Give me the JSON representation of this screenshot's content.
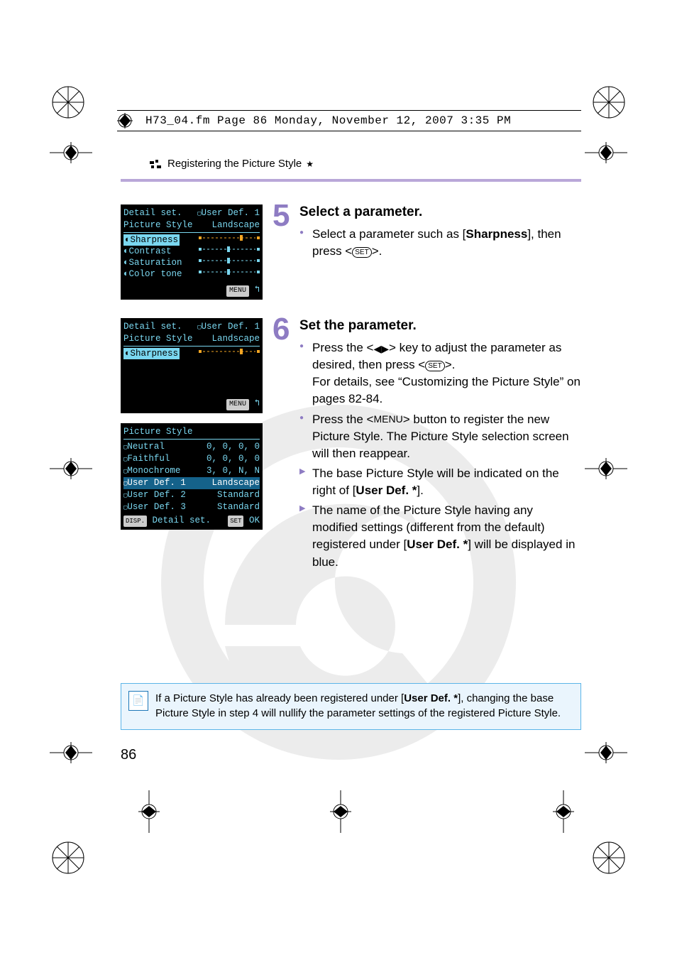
{
  "header_line": "H73_04.fm  Page 86  Monday, November 12, 2007  3:35 PM",
  "section_title": "Registering the Picture Style",
  "section_star": "★",
  "page_number": "86",
  "accent_color": "#8e7cc3",
  "lcd_text_color": "#7ad7f0",
  "lcd_screens": {
    "screen1": {
      "title_left": "Detail set.",
      "title_right": "User Def. 1",
      "picture_style_label": "Picture Style",
      "picture_style_value": "Landscape",
      "rows": [
        {
          "label": "Sharpness",
          "selected": true
        },
        {
          "label": "Contrast"
        },
        {
          "label": "Saturation"
        },
        {
          "label": "Color tone"
        }
      ],
      "footer": "MENU"
    },
    "screen2": {
      "title_left": "Detail set.",
      "title_right": "User Def. 1",
      "picture_style_label": "Picture Style",
      "picture_style_value": "Landscape",
      "rows": [
        {
          "label": "Sharpness",
          "selected": true
        }
      ],
      "footer": "MENU"
    },
    "screen3": {
      "title": "Picture Style",
      "rows": [
        {
          "label": "Neutral",
          "value": "0, 0, 0, 0"
        },
        {
          "label": "Faithful",
          "value": "0, 0, 0, 0"
        },
        {
          "label": "Monochrome",
          "value": "3, 0, N, N"
        },
        {
          "label": "User Def. 1",
          "value": "Landscape",
          "selected": true
        },
        {
          "label": "User Def. 2",
          "value": "Standard"
        },
        {
          "label": "User Def. 3",
          "value": "Standard"
        }
      ],
      "footer_left": "DISP.",
      "footer_left_text": "Detail set.",
      "footer_right": "SET",
      "footer_right_text": "OK"
    }
  },
  "steps": [
    {
      "num": "5",
      "head": "Select a parameter.",
      "bullets": [
        {
          "pre": "Select a parameter such as [",
          "bold": "Sharpness",
          "post": "], then press <",
          "icon": "SET",
          "tail": ">."
        }
      ]
    },
    {
      "num": "6",
      "head": "Set the parameter.",
      "bullets": [
        {
          "text_parts": [
            "Press the <",
            "KEY",
            "> key to adjust the parameter as desired, then press <",
            "SET",
            ">.\nFor details, see “Customizing the Picture Style” on pages 82-84."
          ]
        },
        {
          "text_parts": [
            "Press the <",
            "MENU",
            "> button to register the new Picture Style. The Picture Style selection screen will then reappear."
          ]
        }
      ],
      "arrows": [
        {
          "pre": "The base Picture Style will be indicated on the right of [",
          "bold": "User Def. *",
          "post": "]."
        },
        {
          "pre": "The name of the Picture Style having any modified settings (different from the default) registered under [",
          "bold": "User Def. *",
          "post": "] will be displayed in blue."
        }
      ]
    }
  ],
  "note": {
    "pre": "If a Picture Style has already been registered under [",
    "bold": "User Def. *",
    "post": "], changing the base Picture Style in step 4 will nullify the parameter settings of the registered Picture Style."
  }
}
